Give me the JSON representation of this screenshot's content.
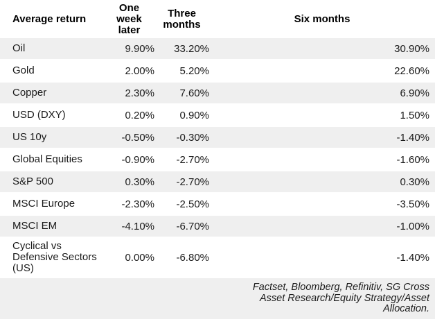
{
  "colors": {
    "background": "#ffffff",
    "row_stripe": "#efefef",
    "text": "#1a1a1a",
    "header_text": "#000000"
  },
  "table": {
    "header": {
      "col0": "Average return",
      "col1": "One\nweek\nlater",
      "col2": "Three\nmonths",
      "col3": "Six months"
    },
    "rows": [
      {
        "label": "Oil",
        "one_week": "9.90%",
        "three_months": "33.20%",
        "six_months": "30.90%"
      },
      {
        "label": "Gold",
        "one_week": "2.00%",
        "three_months": "5.20%",
        "six_months": "22.60%"
      },
      {
        "label": "Copper",
        "one_week": "2.30%",
        "three_months": "7.60%",
        "six_months": "6.90%"
      },
      {
        "label": "USD (DXY)",
        "one_week": "0.20%",
        "three_months": "0.90%",
        "six_months": "1.50%"
      },
      {
        "label": "US 10y",
        "one_week": "-0.50%",
        "three_months": "-0.30%",
        "six_months": "-1.40%"
      },
      {
        "label": "Global Equities",
        "one_week": "-0.90%",
        "three_months": "-2.70%",
        "six_months": "-1.60%"
      },
      {
        "label": "S&P 500",
        "one_week": "0.30%",
        "three_months": "-2.70%",
        "six_months": "0.30%"
      },
      {
        "label": "MSCI Europe",
        "one_week": "-2.30%",
        "three_months": "-2.50%",
        "six_months": "-3.50%"
      },
      {
        "label": "MSCI EM",
        "one_week": "-4.10%",
        "three_months": "-6.70%",
        "six_months": "-1.00%"
      },
      {
        "label": "Cyclical vs\nDefensive Sectors\n(US)",
        "one_week": "0.00%",
        "three_months": "-6.80%",
        "six_months": "-1.40%"
      }
    ],
    "source": "Factset, Bloomberg, Refinitiv, SG Cross Asset Research/Equity Strategy/Asset Allocation."
  },
  "chart_data": {
    "type": "table",
    "title": "Average return",
    "columns": [
      "Average return",
      "One week later",
      "Three months",
      "Six months"
    ],
    "units": "percent",
    "rows": [
      {
        "label": "Oil",
        "values": [
          9.9,
          33.2,
          30.9
        ]
      },
      {
        "label": "Gold",
        "values": [
          2.0,
          5.2,
          22.6
        ]
      },
      {
        "label": "Copper",
        "values": [
          2.3,
          7.6,
          6.9
        ]
      },
      {
        "label": "USD (DXY)",
        "values": [
          0.2,
          0.9,
          1.5
        ]
      },
      {
        "label": "US 10y",
        "values": [
          -0.5,
          -0.3,
          -1.4
        ]
      },
      {
        "label": "Global Equities",
        "values": [
          -0.9,
          -2.7,
          -1.6
        ]
      },
      {
        "label": "S&P 500",
        "values": [
          0.3,
          -2.7,
          0.3
        ]
      },
      {
        "label": "MSCI Europe",
        "values": [
          -2.3,
          -2.5,
          -3.5
        ]
      },
      {
        "label": "MSCI EM",
        "values": [
          -4.1,
          -6.7,
          -1.0
        ]
      },
      {
        "label": "Cyclical vs Defensive Sectors (US)",
        "values": [
          0.0,
          -6.8,
          -1.4
        ]
      }
    ],
    "source": "Factset, Bloomberg, Refinitiv, SG Cross Asset Research/Equity Strategy/Asset Allocation."
  }
}
